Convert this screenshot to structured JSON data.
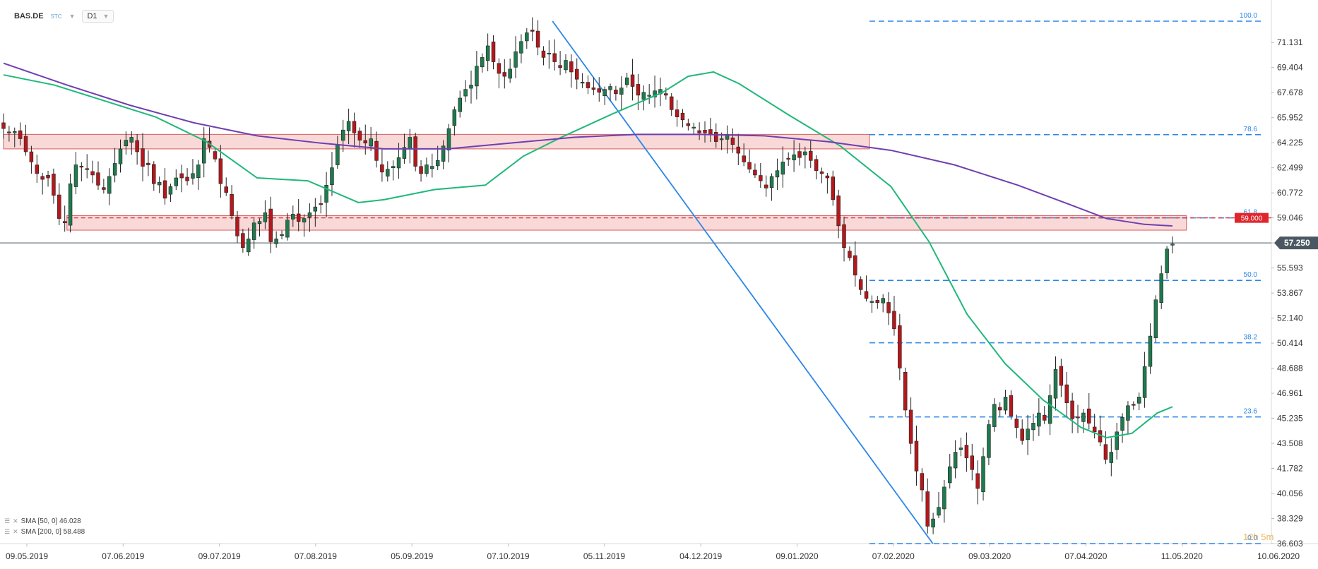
{
  "header": {
    "symbol": "BAS.DE",
    "source": "STC",
    "timeframe": "D1"
  },
  "indicators": [
    {
      "label": "SMA [50, 0] 46.028",
      "color": "#1fb87a"
    },
    {
      "label": "SMA [200, 0] 58.488",
      "color": "#6f3fb0"
    }
  ],
  "watermark": "12h 5m",
  "colors": {
    "bull": "#1f7a4d",
    "bear": "#b5171b",
    "sma50": "#1fb87a",
    "sma200": "#6f3fb0",
    "fib": "#2a86e8",
    "zone_fill": "#f9d2d2",
    "zone_stroke": "#d04040",
    "price_line": "#6b7a84",
    "alert": "#e0262c"
  },
  "chart_data": {
    "type": "candlestick",
    "x_labels": [
      "09.05.2019",
      "07.06.2019",
      "09.07.2019",
      "07.08.2019",
      "05.09.2019",
      "07.10.2019",
      "05.11.2019",
      "04.12.2019",
      "09.01.2020",
      "07.02.2020",
      "09.03.2020",
      "07.04.2020",
      "11.05.2020",
      "10.06.2020"
    ],
    "y_ticks": [
      "71.131",
      "69.404",
      "67.678",
      "65.952",
      "64.225",
      "62.499",
      "60.772",
      "59.046",
      "57.319",
      "55.593",
      "53.867",
      "52.140",
      "50.414",
      "48.688",
      "46.961",
      "45.235",
      "43.508",
      "41.782",
      "40.056",
      "38.329",
      "36.603"
    ],
    "ylim": [
      36.603,
      72.6
    ],
    "current_price": {
      "value": 57.319,
      "label": "57.250"
    },
    "alert_level": {
      "value": 59.046,
      "label": "59.000"
    },
    "fib_levels": [
      {
        "label": "100.0",
        "value": 72.6
      },
      {
        "label": "78.6",
        "value": 64.78
      },
      {
        "label": "61.8",
        "value": 59.046
      },
      {
        "label": "50.0",
        "value": 54.74
      },
      {
        "label": "38.2",
        "value": 50.44
      },
      {
        "label": "23.6",
        "value": 45.33
      },
      {
        "label": "0.0",
        "value": 36.603
      }
    ],
    "zones": [
      {
        "name": "resistance",
        "x0": 0.0,
        "x1": 0.683,
        "y0": 63.8,
        "y1": 64.8
      },
      {
        "name": "support",
        "x0": 0.05,
        "x1": 0.933,
        "y0": 58.2,
        "y1": 59.2
      }
    ],
    "fib_trendline": [
      [
        0.433,
        72.6
      ],
      [
        0.733,
        36.603
      ]
    ],
    "sma50": [
      [
        0.0,
        68.9
      ],
      [
        0.04,
        68.2
      ],
      [
        0.08,
        67.1
      ],
      [
        0.12,
        66.0
      ],
      [
        0.16,
        64.3
      ],
      [
        0.2,
        61.8
      ],
      [
        0.24,
        61.6
      ],
      [
        0.28,
        60.1
      ],
      [
        0.3,
        60.3
      ],
      [
        0.34,
        61.0
      ],
      [
        0.38,
        61.3
      ],
      [
        0.41,
        63.3
      ],
      [
        0.44,
        64.6
      ],
      [
        0.48,
        66.2
      ],
      [
        0.52,
        67.7
      ],
      [
        0.54,
        68.8
      ],
      [
        0.56,
        69.1
      ],
      [
        0.58,
        68.3
      ],
      [
        0.62,
        66.1
      ],
      [
        0.66,
        64.0
      ],
      [
        0.7,
        61.2
      ],
      [
        0.73,
        57.4
      ],
      [
        0.76,
        52.4
      ],
      [
        0.79,
        49.0
      ],
      [
        0.82,
        46.5
      ],
      [
        0.85,
        44.6
      ],
      [
        0.87,
        43.9
      ],
      [
        0.89,
        44.2
      ],
      [
        0.91,
        45.6
      ],
      [
        0.922,
        46.03
      ]
    ],
    "sma200": [
      [
        0.0,
        69.7
      ],
      [
        0.05,
        68.2
      ],
      [
        0.1,
        66.8
      ],
      [
        0.15,
        65.6
      ],
      [
        0.2,
        64.7
      ],
      [
        0.25,
        64.2
      ],
      [
        0.3,
        63.8
      ],
      [
        0.35,
        63.8
      ],
      [
        0.4,
        64.2
      ],
      [
        0.45,
        64.6
      ],
      [
        0.5,
        64.8
      ],
      [
        0.55,
        64.8
      ],
      [
        0.6,
        64.7
      ],
      [
        0.65,
        64.3
      ],
      [
        0.7,
        63.7
      ],
      [
        0.75,
        62.7
      ],
      [
        0.8,
        61.3
      ],
      [
        0.84,
        60.0
      ],
      [
        0.87,
        59.0
      ],
      [
        0.9,
        58.6
      ],
      [
        0.922,
        58.49
      ]
    ],
    "closes": [
      65.2,
      64.9,
      65.0,
      64.5,
      63.6,
      62.9,
      62.1,
      61.7,
      61.8,
      60.6,
      59.0,
      58.7,
      61.4,
      62.7,
      62.6,
      62.4,
      62.0,
      61.3,
      61.0,
      61.9,
      62.8,
      63.8,
      64.4,
      64.6,
      63.6,
      62.6,
      62.7,
      61.4,
      61.5,
      60.4,
      61.2,
      61.8,
      61.8,
      61.6,
      62.1,
      62.7,
      64.5,
      63.9,
      63.1,
      61.4,
      60.8,
      59.2,
      57.8,
      57.0,
      57.6,
      58.7,
      58.8,
      59.4,
      57.4,
      57.6,
      57.9,
      58.9,
      59.3,
      58.8,
      59.0,
      59.4,
      59.8,
      60.0,
      61.3,
      62.5,
      64.1,
      65.1,
      65.7,
      64.9,
      64.4,
      64.2,
      64.5,
      63.0,
      62.2,
      62.4,
      62.6,
      63.2,
      63.9,
      64.6,
      62.6,
      62.1,
      62.7,
      62.6,
      63.0,
      64.0,
      65.2,
      66.5,
      67.3,
      67.9,
      68.2,
      69.5,
      70.1,
      70.9,
      69.8,
      69.0,
      68.8,
      69.3,
      70.5,
      71.2,
      71.8,
      71.9,
      70.8,
      70.1,
      70.4,
      69.8,
      69.4,
      69.9,
      69.1,
      68.6,
      68.4,
      68.0,
      67.9,
      67.7,
      67.9,
      68.1,
      67.6,
      68.0,
      68.7,
      68.1,
      67.5,
      67.7,
      67.5,
      67.8,
      67.9,
      67.5,
      66.5,
      66.0,
      65.8,
      65.4,
      65.3,
      64.9,
      64.9,
      64.8,
      64.3,
      64.5,
      64.8,
      64.1,
      63.5,
      62.9,
      62.4,
      62.0,
      61.6,
      61.1,
      61.9,
      62.3,
      62.9,
      63.1,
      63.4,
      63.2,
      63.6,
      63.0,
      62.3,
      62.1,
      61.8,
      60.3,
      58.5,
      57.0,
      56.3,
      55.1,
      54.1,
      53.5,
      53.3,
      53.2,
      53.5,
      52.5,
      51.4,
      48.7,
      45.8,
      43.5,
      41.6,
      40.3,
      37.8,
      38.3,
      39.1,
      40.5,
      41.9,
      42.9,
      43.2,
      42.5,
      41.7,
      40.4,
      42.6,
      44.8,
      46.2,
      45.8,
      46.7,
      45.4,
      44.6,
      43.7,
      44.5,
      44.9,
      45.6,
      45.1,
      46.8,
      48.6,
      47.5,
      46.3,
      45.2,
      45.3,
      45.6,
      44.9,
      44.3,
      43.6,
      42.4,
      42.9,
      44.3,
      45.3,
      46.1,
      46.2,
      46.7,
      48.8,
      50.9,
      53.4,
      55.2,
      56.9,
      57.25
    ]
  }
}
